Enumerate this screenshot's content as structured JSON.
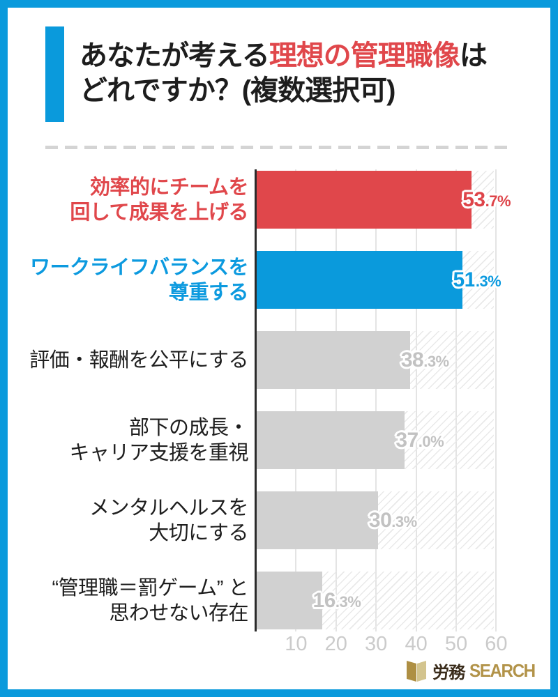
{
  "title": {
    "part1": "あなたが考える",
    "highlight": "理想の管理職像",
    "part3": "は",
    "line2": "どれですか？(複数選択可)",
    "text_color": "#1D1D1D",
    "highlight_color": "#E0474B"
  },
  "chart_data": {
    "type": "bar",
    "orientation": "horizontal",
    "unit": "%",
    "categories": [
      [
        "効率的にチームを",
        "回して成果を上げる"
      ],
      [
        "ワークライフバランスを",
        "尊重する"
      ],
      [
        "評価・報酬を公平にする"
      ],
      [
        "部下の成長・",
        "キャリア支援を重視"
      ],
      [
        "メンタルヘルスを",
        "大切にする"
      ],
      [
        "“管理職＝罰ゲーム” と",
        "思わせない存在"
      ]
    ],
    "values": [
      53.7,
      51.3,
      38.3,
      37.0,
      30.3,
      16.3
    ],
    "value_labels": [
      "53.7%",
      "51.3%",
      "38.3%",
      "37.0%",
      "30.3%",
      "16.3%"
    ],
    "bar_colors": [
      "#E0474B",
      "#0A9ADC",
      "#D1D1D1",
      "#D1D1D1",
      "#D1D1D1",
      "#D1D1D1"
    ],
    "label_colors": [
      "#E0474B",
      "#0C9ADF",
      "#1E1E1E",
      "#1E1E1E",
      "#1E1E1E",
      "#1E1E1E"
    ],
    "label_bold": [
      true,
      true,
      false,
      false,
      false,
      false
    ],
    "value_colors": [
      "#DE4449",
      "#0C9ADF",
      "#C2C2C2",
      "#C2C2C2",
      "#C2C2C2",
      "#C2C2C2"
    ],
    "xticks": [
      10,
      20,
      30,
      40,
      50,
      60
    ],
    "xlim": [
      0,
      60
    ],
    "grid": "vertical-only",
    "background_hatch": true,
    "axis_color": "#2B2B2B",
    "gridline_color": "#E4E4E4",
    "hatch_color": "#E9E9E9",
    "tick_color": "#CBCBCB"
  },
  "footer": {
    "logo_jp": "労務",
    "logo_en": "SEARCH",
    "logo_jp_color": "#3A2C1B",
    "logo_gold_color": "#B29349",
    "icon_dark_gold": "#AE8F43",
    "icon_light_gold": "#D3C48E"
  },
  "frame": {
    "border_color": "#0A9ADC"
  }
}
